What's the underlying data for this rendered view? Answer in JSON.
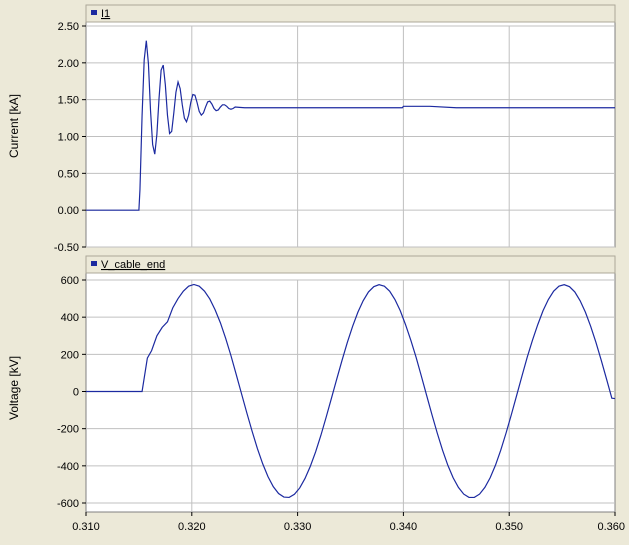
{
  "colors": {
    "background": "#ece9d8",
    "plot_area": "#ffffff",
    "grid": "#c0c0c0",
    "trace": "#1c2aa0",
    "legend_tab": "#ece9d8",
    "text": "#000000"
  },
  "chart_data": [
    {
      "type": "line",
      "ylabel": "Current [kA]",
      "xlim": [
        0.31,
        0.36
      ],
      "ylim": [
        -0.5,
        2.5
      ],
      "yticks": [
        "2.50",
        "2.00",
        "1.50",
        "1.00",
        "0.50",
        "0.00",
        "-0.50"
      ],
      "ytick_values": [
        2.5,
        2.0,
        1.5,
        1.0,
        0.5,
        0.0,
        -0.5
      ],
      "xticks": [
        0.32,
        0.33,
        0.34,
        0.35
      ],
      "grid": true,
      "legend_position": "top-left",
      "series": [
        {
          "name": "I1",
          "color": "#1c2aa0",
          "x": [
            0.31,
            0.315,
            0.3151,
            0.3153,
            0.3155,
            0.3157,
            0.3159,
            0.3161,
            0.3163,
            0.3165,
            0.3167,
            0.3169,
            0.3171,
            0.3173,
            0.3175,
            0.3177,
            0.3179,
            0.3181,
            0.3183,
            0.3185,
            0.3187,
            0.3189,
            0.3191,
            0.3193,
            0.3195,
            0.3197,
            0.3199,
            0.3201,
            0.3203,
            0.3205,
            0.3207,
            0.3209,
            0.3211,
            0.3213,
            0.3215,
            0.3217,
            0.3219,
            0.3221,
            0.3223,
            0.3225,
            0.3227,
            0.3229,
            0.3231,
            0.3233,
            0.3235,
            0.3237,
            0.3239,
            0.3241,
            0.3245,
            0.325,
            0.33,
            0.335,
            0.3399,
            0.34,
            0.3425,
            0.345,
            0.35,
            0.355,
            0.36
          ],
          "y": [
            0.0,
            0.0,
            0.28,
            1.28,
            2.04,
            2.3,
            1.99,
            1.35,
            0.89,
            0.76,
            1.03,
            1.51,
            1.9,
            1.97,
            1.7,
            1.29,
            1.04,
            1.07,
            1.32,
            1.6,
            1.74,
            1.65,
            1.43,
            1.25,
            1.2,
            1.29,
            1.46,
            1.57,
            1.56,
            1.46,
            1.34,
            1.29,
            1.32,
            1.4,
            1.47,
            1.48,
            1.44,
            1.38,
            1.35,
            1.36,
            1.4,
            1.43,
            1.43,
            1.41,
            1.38,
            1.37,
            1.38,
            1.4,
            1.395,
            1.39,
            1.39,
            1.39,
            1.39,
            1.41,
            1.41,
            1.39,
            1.39,
            1.39,
            1.39
          ]
        }
      ]
    },
    {
      "type": "line",
      "ylabel": "Voltage [kV]",
      "xlim": [
        0.31,
        0.36
      ],
      "ylim": [
        -600,
        600
      ],
      "yticks": [
        "600",
        "400",
        "200",
        "0",
        "-200",
        "-400",
        "-600"
      ],
      "ytick_values": [
        600,
        400,
        200,
        0,
        -200,
        -400,
        -600
      ],
      "xticks": [
        0.31,
        0.32,
        0.33,
        0.34,
        0.35,
        0.36
      ],
      "xtick_labels": [
        "0.310",
        "0.320",
        "0.330",
        "0.340",
        "0.350",
        "0.360"
      ],
      "grid": true,
      "legend_position": "top-left",
      "series": [
        {
          "name": "V_cable_end",
          "color": "#1c2aa0",
          "x": [
            0.31,
            0.3153,
            0.3158,
            0.3162,
            0.3167,
            0.3172,
            0.3177,
            0.3182,
            0.3187,
            0.3192,
            0.3197,
            0.3202,
            0.3207,
            0.3212,
            0.3217,
            0.3222,
            0.3227,
            0.3232,
            0.3237,
            0.3242,
            0.3247,
            0.3252,
            0.3257,
            0.3262,
            0.3267,
            0.3272,
            0.3277,
            0.3282,
            0.3287,
            0.3292,
            0.3297,
            0.3302,
            0.3307,
            0.3312,
            0.3317,
            0.3322,
            0.3327,
            0.3332,
            0.3337,
            0.3342,
            0.3347,
            0.3352,
            0.3357,
            0.3362,
            0.3367,
            0.3372,
            0.3377,
            0.3382,
            0.3387,
            0.3392,
            0.3397,
            0.3402,
            0.3407,
            0.3412,
            0.3417,
            0.3422,
            0.3427,
            0.3432,
            0.3437,
            0.3442,
            0.3447,
            0.3452,
            0.3457,
            0.3462,
            0.3467,
            0.3472,
            0.3477,
            0.3482,
            0.3487,
            0.3492,
            0.3497,
            0.3502,
            0.3507,
            0.3512,
            0.3517,
            0.3522,
            0.3527,
            0.3532,
            0.3537,
            0.3542,
            0.3547,
            0.3552,
            0.3557,
            0.3562,
            0.3567,
            0.3572,
            0.3577,
            0.3582,
            0.3587,
            0.3592,
            0.3597,
            0.36
          ],
          "y": [
            0,
            0,
            180,
            220,
            300,
            345,
            375,
            450,
            500,
            540,
            567,
            576,
            567,
            540,
            498,
            440,
            370,
            286,
            193,
            91,
            -12,
            -115,
            -214,
            -307,
            -389,
            -458,
            -512,
            -549,
            -568,
            -570,
            -553,
            -519,
            -468,
            -403,
            -325,
            -236,
            -138,
            -36,
            67,
            168,
            264,
            351,
            427,
            489,
            536,
            564,
            575,
            567,
            540,
            495,
            435,
            360,
            276,
            184,
            82,
            -22,
            -125,
            -224,
            -316,
            -397,
            -464,
            -516,
            -552,
            -570,
            -570,
            -552,
            -516,
            -464,
            -397,
            -316,
            -224,
            -125,
            -22,
            82,
            184,
            276,
            360,
            435,
            495,
            540,
            567,
            575,
            564,
            536,
            489,
            427,
            351,
            264,
            168,
            67,
            -36,
            -38
          ]
        }
      ]
    }
  ]
}
